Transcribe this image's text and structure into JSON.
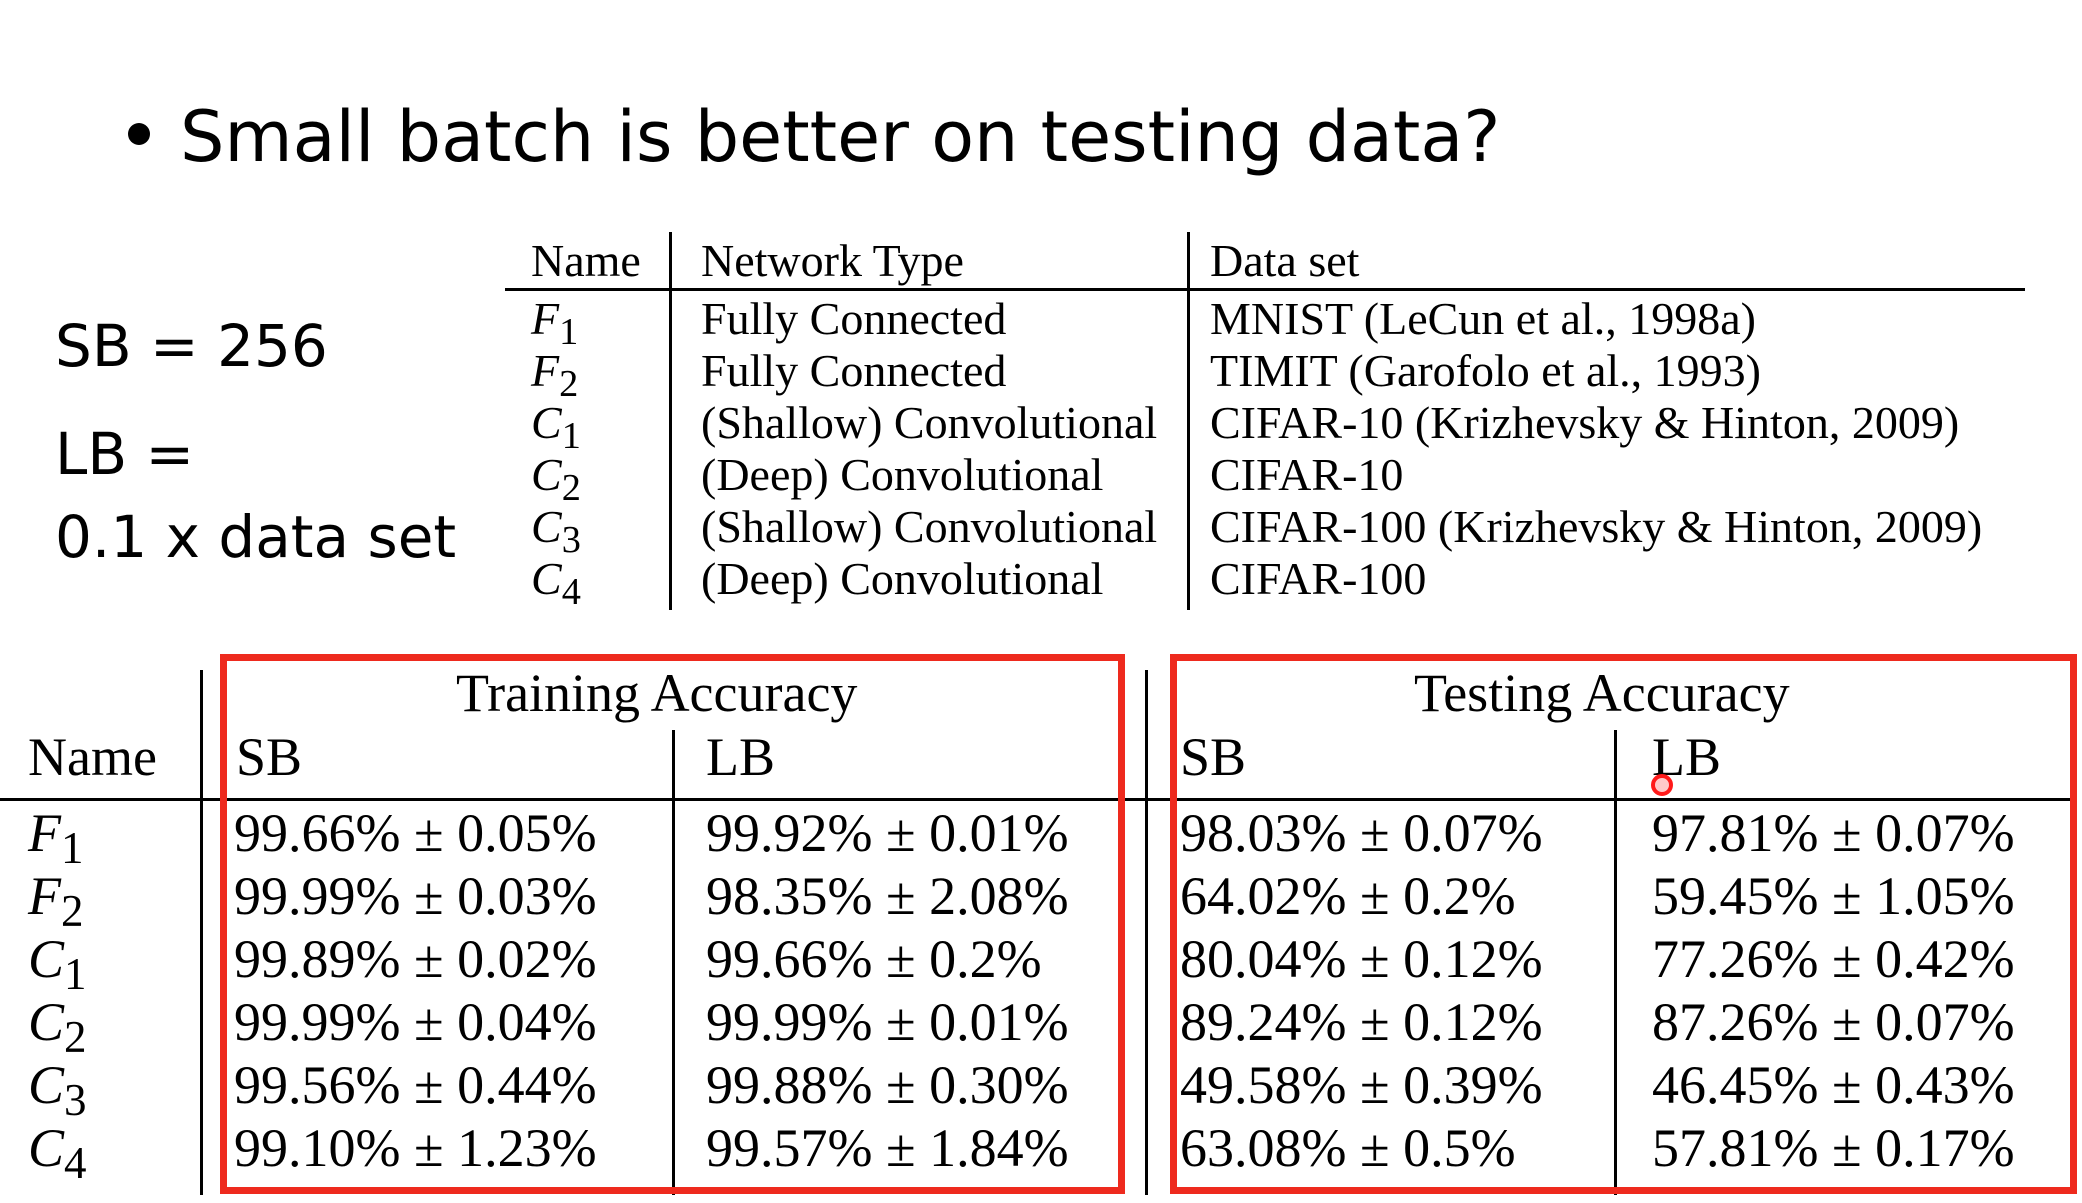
{
  "title": "Small batch is better on testing data?",
  "side_notes": {
    "sb": "SB = 256",
    "lb": "LB =",
    "lb2": "0.1 x data set"
  },
  "networks_table": {
    "headers": [
      "Name",
      "Network Type",
      "Data set"
    ],
    "rows": [
      {
        "sym": "F",
        "sub": "1",
        "type": "Fully Connected",
        "data": "MNIST (LeCun et al., 1998a)"
      },
      {
        "sym": "F",
        "sub": "2",
        "type": "Fully Connected",
        "data": "TIMIT (Garofolo et al., 1993)"
      },
      {
        "sym": "C",
        "sub": "1",
        "type": "(Shallow) Convolutional",
        "data": "CIFAR-10 (Krizhevsky & Hinton, 2009)"
      },
      {
        "sym": "C",
        "sub": "2",
        "type": "(Deep) Convolutional",
        "data": "CIFAR-10"
      },
      {
        "sym": "C",
        "sub": "3",
        "type": "(Shallow) Convolutional",
        "data": "CIFAR-100 (Krizhevsky & Hinton, 2009)"
      },
      {
        "sym": "C",
        "sub": "4",
        "type": "(Deep) Convolutional",
        "data": "CIFAR-100"
      }
    ]
  },
  "accuracy_table": {
    "name_header": "Name",
    "train_header": "Training Accuracy",
    "test_header": "Testing Accuracy",
    "sb": "SB",
    "lb": "LB",
    "rows": [
      {
        "sym": "F",
        "sub": "1",
        "train_sb": "99.66% ± 0.05%",
        "train_lb": "99.92% ± 0.01%",
        "test_sb": "98.03% ± 0.07%",
        "test_lb": "97.81% ± 0.07%"
      },
      {
        "sym": "F",
        "sub": "2",
        "train_sb": "99.99% ± 0.03%",
        "train_lb": "98.35% ± 2.08%",
        "test_sb": "64.02% ± 0.2%",
        "test_lb": "59.45% ± 1.05%"
      },
      {
        "sym": "C",
        "sub": "1",
        "train_sb": "99.89% ± 0.02%",
        "train_lb": "99.66% ± 0.2%",
        "test_sb": "80.04% ± 0.12%",
        "test_lb": "77.26% ± 0.42%"
      },
      {
        "sym": "C",
        "sub": "2",
        "train_sb": "99.99% ± 0.04%",
        "train_lb": "99.99% ± 0.01%",
        "test_sb": "89.24% ± 0.12%",
        "test_lb": "87.26% ± 0.07%"
      },
      {
        "sym": "C",
        "sub": "3",
        "train_sb": "99.56% ± 0.44%",
        "train_lb": "99.88% ± 0.30%",
        "test_sb": "49.58% ± 0.39%",
        "test_lb": "46.45% ± 0.43%"
      },
      {
        "sym": "C",
        "sub": "4",
        "train_sb": "99.10% ± 1.23%",
        "train_lb": "99.57% ± 1.84%",
        "test_sb": "63.08% ± 0.5%",
        "test_lb": "57.81% ± 0.17%"
      }
    ]
  },
  "colors": {
    "highlight_box": "#ee2a1e",
    "cursor": "#ff1a1a"
  }
}
